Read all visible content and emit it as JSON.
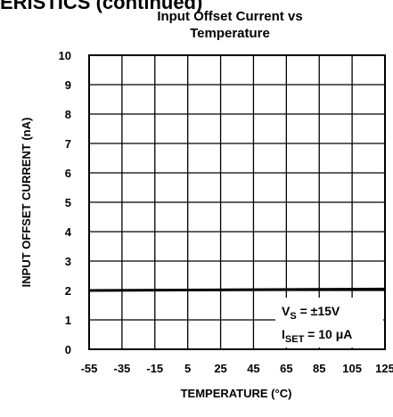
{
  "header": "ERISTICS (continued)",
  "chart_data": {
    "type": "line",
    "title": [
      "Input Offset Current vs",
      "Temperature"
    ],
    "x_label": "TEMPERATURE (°C)",
    "y_label": "INPUT OFFSET CURRENT (nA)",
    "x": [
      -55,
      125
    ],
    "series": [
      {
        "color": "#000000",
        "values": [
          2.0,
          2.05
        ]
      }
    ],
    "xlim": [
      -55,
      125
    ],
    "xticks": [
      -55,
      -35,
      -15,
      5,
      25,
      45,
      65,
      85,
      105,
      125
    ],
    "ylim": [
      0,
      10
    ],
    "yticks": [
      0,
      1,
      2,
      3,
      4,
      5,
      6,
      7,
      8,
      9,
      10
    ],
    "grid": true,
    "annotations": [
      {
        "main": "V",
        "sub": "S",
        "rest": " = ±15V"
      },
      {
        "main": "I",
        "sub": "SET",
        "rest": " = 10 μA"
      }
    ]
  }
}
